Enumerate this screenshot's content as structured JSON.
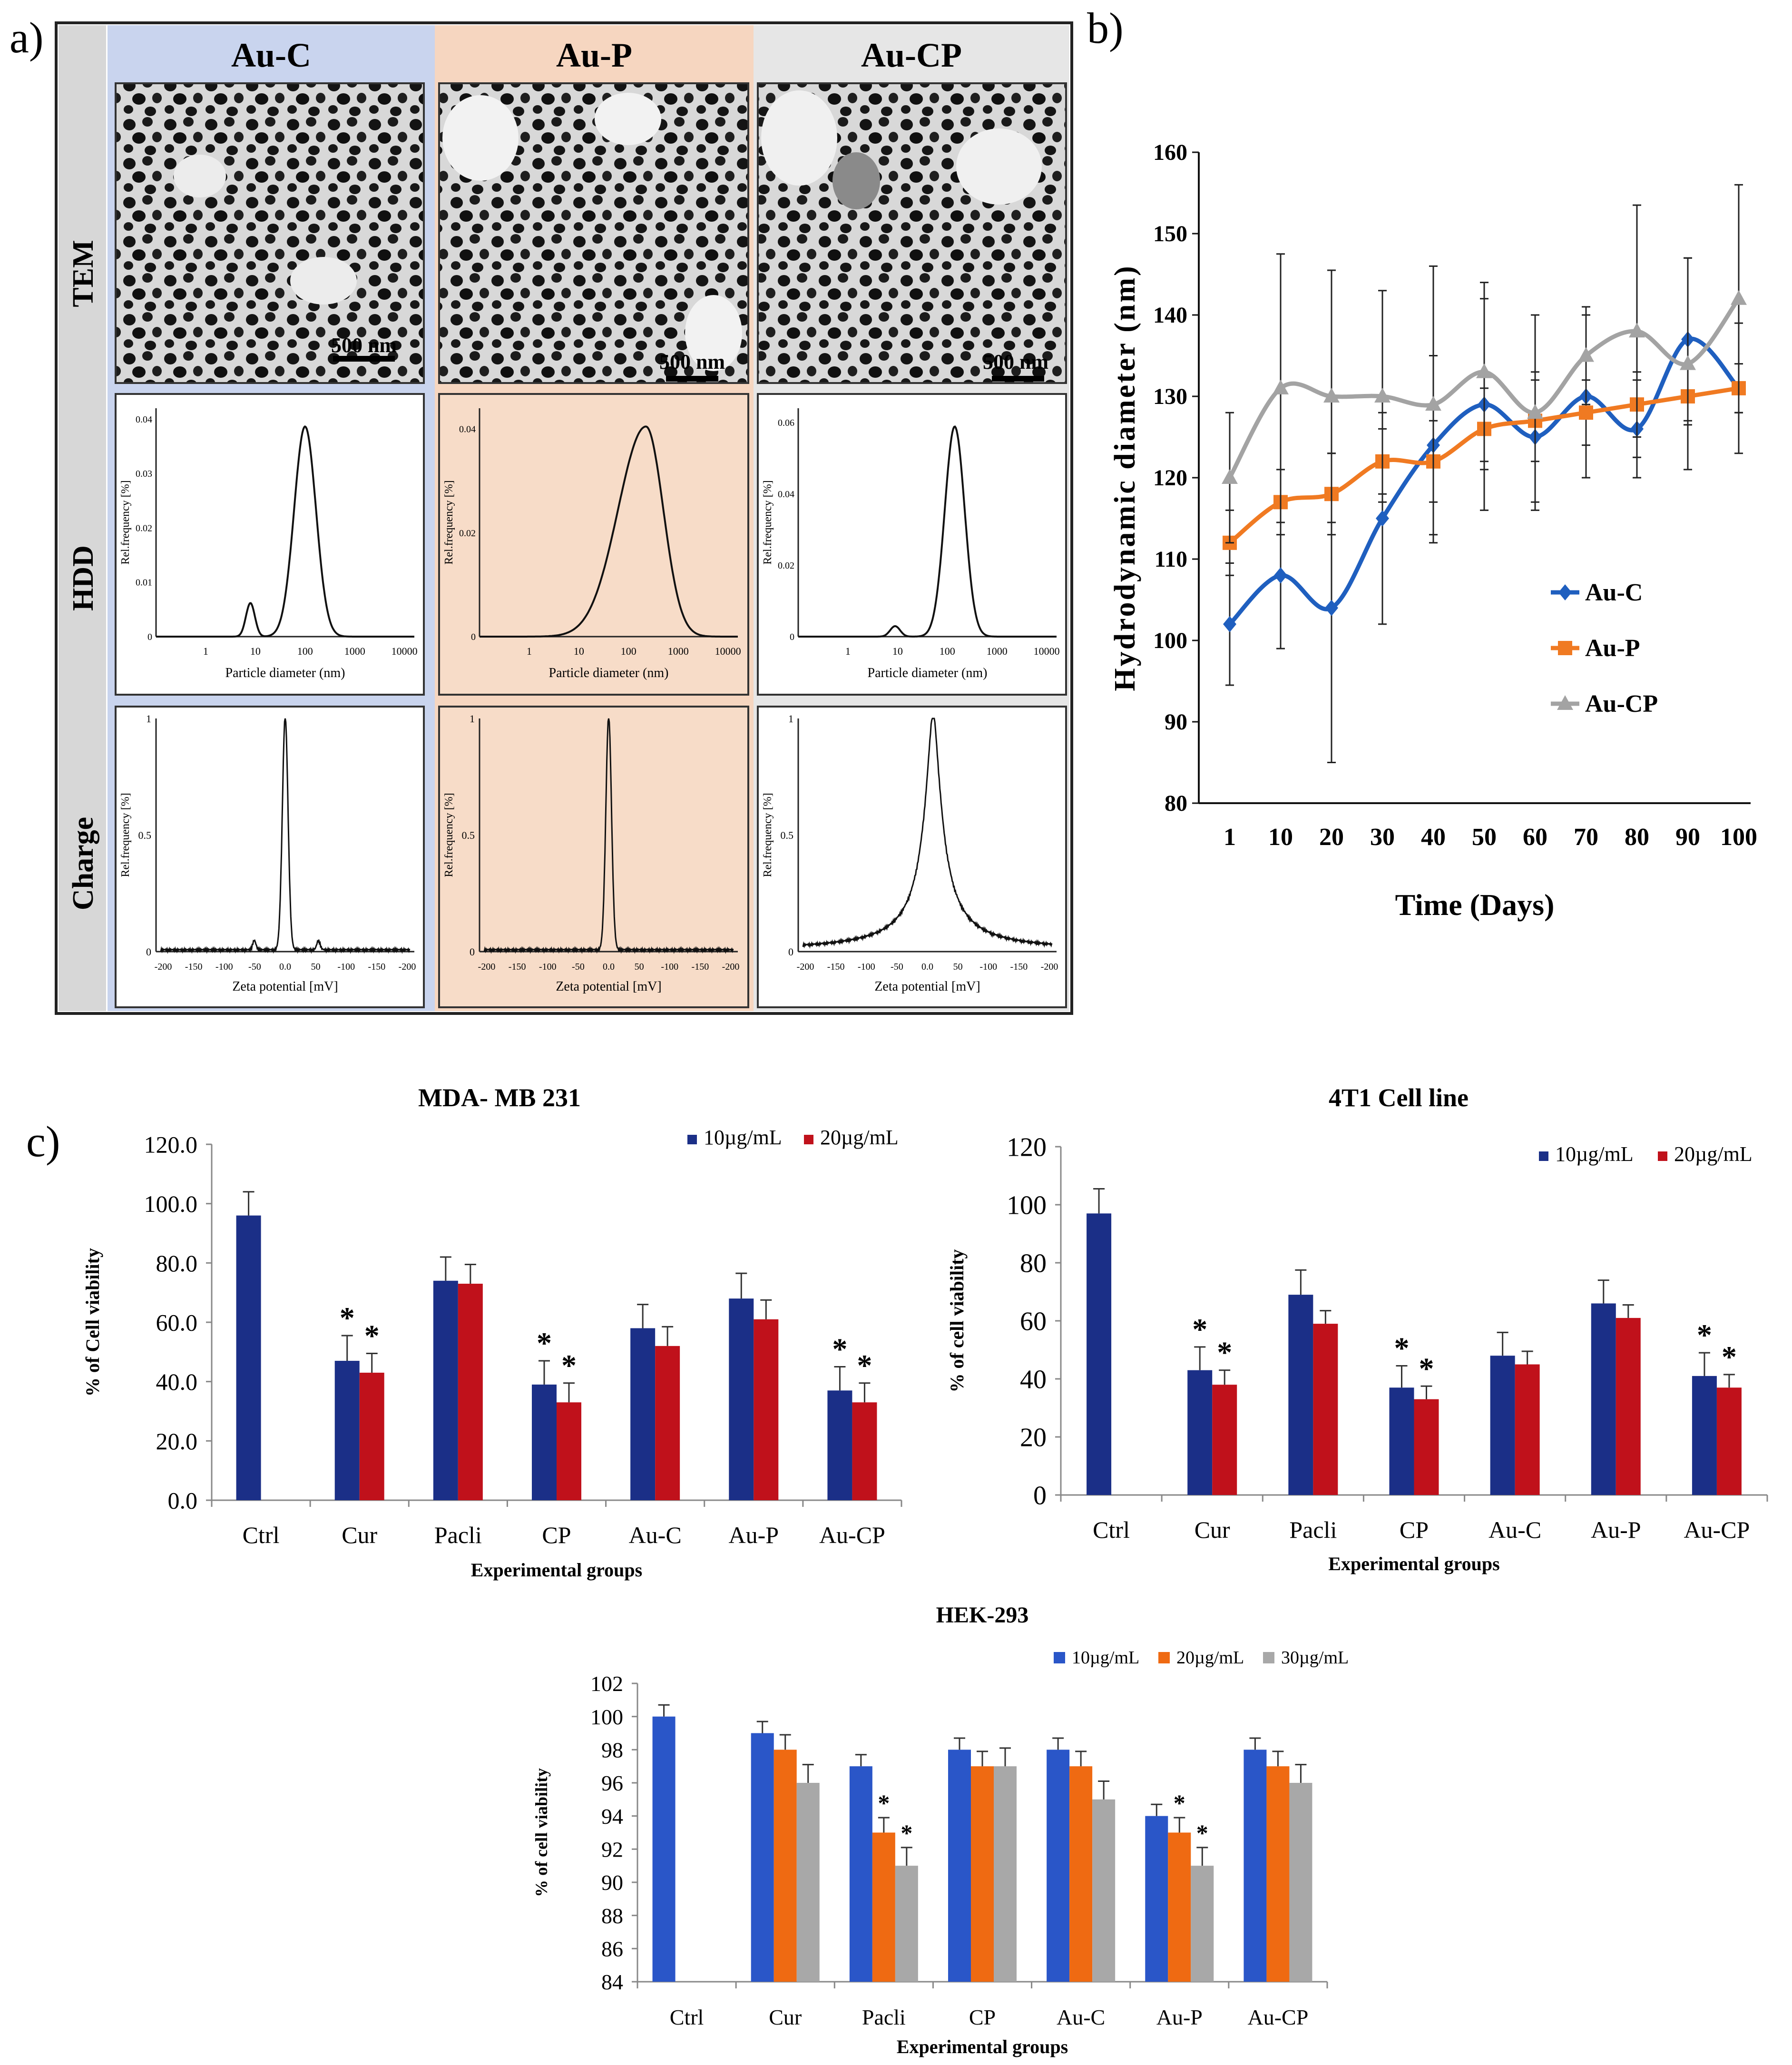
{
  "panel_labels": {
    "a": "a)",
    "b": "b)",
    "c": "c)"
  },
  "panel_a": {
    "columns": [
      "Au-C",
      "Au-P",
      "Au-CP"
    ],
    "rows": [
      "TEM",
      "HDD",
      "Charge"
    ],
    "scale_bars": [
      "500 nm",
      "500 nm",
      "500 nm"
    ],
    "hdd_xlabel": "Particle diameter (nm)",
    "hdd_ylabel": "Rel.frequency [%]",
    "charge_xlabel": "Zeta potential [mV]",
    "charge_ylabel": "Rel.frequency [%]",
    "hdd_xticks": [
      "1",
      "10",
      "100",
      "1000",
      "10000"
    ],
    "hdd_yticks": [
      [
        "0",
        "0.01",
        "0.02",
        "0.03",
        "0.04"
      ],
      [
        "0",
        "0.02",
        "0.04"
      ],
      [
        "0",
        "0.02",
        "0.04",
        "0.06"
      ]
    ],
    "charge_xticks": [
      "-200",
      "-150",
      "-100",
      "-50",
      "0.0",
      "50",
      "-100",
      "-150",
      "-200"
    ],
    "charge_yticks": [
      "0",
      "0.5",
      "1"
    ]
  },
  "chart_data": [
    {
      "type": "line",
      "title": "",
      "xlabel": "Time (Days)",
      "ylabel": "Hydrodynamic diameter (nm)",
      "categories": [
        "1",
        "10",
        "20",
        "30",
        "40",
        "50",
        "60",
        "70",
        "80",
        "90",
        "100"
      ],
      "ylim": [
        80,
        160
      ],
      "yticks": [
        "80",
        "90",
        "100",
        "110",
        "120",
        "130",
        "140",
        "150",
        "160"
      ],
      "legend_position": "center-right",
      "series": [
        {
          "name": "Au-C",
          "color": "#1f5fbf",
          "marker": "diamond",
          "values": [
            102,
            108,
            104,
            115,
            124,
            129,
            125,
            130,
            126,
            137,
            131
          ],
          "errors": [
            7.5,
            9,
            19,
            13,
            11,
            13,
            8,
            10,
            6,
            10,
            8
          ]
        },
        {
          "name": "Au-P",
          "color": "#f07a22",
          "marker": "square",
          "values": [
            112,
            117,
            118,
            122,
            122,
            126,
            127,
            128,
            129,
            130,
            131
          ],
          "errors": [
            4,
            4,
            5,
            4,
            5,
            5,
            5,
            4,
            4,
            3.5,
            3
          ]
        },
        {
          "name": "Au-CP",
          "color": "#a3a3a3",
          "marker": "triangle",
          "values": [
            120,
            131,
            130,
            130,
            129,
            133,
            128,
            135,
            138,
            134,
            142
          ],
          "errors": [
            8,
            16.5,
            15.5,
            13,
            17,
            11,
            12,
            6,
            15.5,
            13,
            14
          ]
        }
      ]
    },
    {
      "type": "bar",
      "title": "MDA- MB 231",
      "xlabel": "Experimental groups",
      "ylabel": "% of Cell viability",
      "categories": [
        "Ctrl",
        "Cur",
        "Pacli",
        "CP",
        "Au-C",
        "Au-P",
        "Au-CP"
      ],
      "ylim": [
        0,
        120
      ],
      "yticks": [
        "0.0",
        "20.0",
        "40.0",
        "60.0",
        "80.0",
        "100.0",
        "120.0"
      ],
      "legend_position": "top-right",
      "series": [
        {
          "name": "10µg/mL",
          "color": "#1b2f87",
          "values": [
            96,
            47,
            74,
            39,
            58,
            68,
            37
          ],
          "errors": [
            8,
            8.5,
            8,
            8,
            8,
            8.5,
            8
          ],
          "significant": [
            false,
            true,
            false,
            true,
            false,
            false,
            true
          ]
        },
        {
          "name": "20µg/mL",
          "color": "#c0111b",
          "values": [
            null,
            43,
            73,
            33,
            52,
            61,
            33
          ],
          "errors": [
            null,
            6.5,
            6.5,
            6.5,
            6.5,
            6.5,
            6.5
          ],
          "significant": [
            false,
            true,
            false,
            true,
            false,
            false,
            true
          ]
        }
      ]
    },
    {
      "type": "bar",
      "title": "4T1 Cell line",
      "xlabel": "Experimental groups",
      "ylabel": "% of cell viability",
      "categories": [
        "Ctrl",
        "Cur",
        "Pacli",
        "CP",
        "Au-C",
        "Au-P",
        "Au-CP"
      ],
      "ylim": [
        0,
        120
      ],
      "yticks": [
        "0",
        "20",
        "40",
        "60",
        "80",
        "100",
        "120"
      ],
      "legend_position": "top-right",
      "series": [
        {
          "name": "10µg/mL",
          "color": "#1b2f87",
          "values": [
            97,
            43,
            69,
            37,
            48,
            66,
            41
          ],
          "errors": [
            8.5,
            8,
            8.5,
            7.5,
            8,
            8,
            8
          ],
          "significant": [
            false,
            true,
            false,
            true,
            false,
            false,
            true
          ]
        },
        {
          "name": "20µg/mL",
          "color": "#c0111b",
          "values": [
            null,
            38,
            59,
            33,
            45,
            61,
            37
          ],
          "errors": [
            null,
            5,
            4.5,
            4.5,
            4.5,
            4.5,
            4.5
          ],
          "significant": [
            false,
            true,
            false,
            true,
            false,
            false,
            true
          ]
        }
      ]
    },
    {
      "type": "bar",
      "title": "HEK-293",
      "xlabel": "Experimental groups",
      "ylabel": "% of cell viability",
      "categories": [
        "Ctrl",
        "Cur",
        "Pacli",
        "CP",
        "Au-C",
        "Au-P",
        "Au-CP"
      ],
      "ylim": [
        84,
        102
      ],
      "yticks": [
        "84",
        "86",
        "88",
        "90",
        "92",
        "94",
        "96",
        "98",
        "100",
        "102"
      ],
      "legend_position": "top-right",
      "series": [
        {
          "name": "10µg/mL",
          "color": "#2a56c8",
          "values": [
            100,
            99,
            97,
            98,
            98,
            94,
            98
          ],
          "errors": [
            0.7,
            0.7,
            0.7,
            0.7,
            0.7,
            0.7,
            0.7
          ],
          "significant": [
            false,
            false,
            false,
            false,
            false,
            false,
            false
          ]
        },
        {
          "name": "20µg/mL",
          "color": "#ef6a12",
          "values": [
            null,
            98,
            93,
            97,
            97,
            93,
            97
          ],
          "errors": [
            null,
            0.9,
            0.9,
            0.9,
            0.9,
            0.9,
            0.9
          ],
          "significant": [
            false,
            false,
            true,
            false,
            false,
            true,
            false
          ]
        },
        {
          "name": "30µg/mL",
          "color": "#a8a8a8",
          "values": [
            null,
            96,
            91,
            97,
            95,
            91,
            96
          ],
          "errors": [
            null,
            1.1,
            1.1,
            1.1,
            1.1,
            1.1,
            1.1
          ],
          "significant": [
            false,
            false,
            true,
            false,
            false,
            true,
            false
          ]
        }
      ]
    }
  ]
}
